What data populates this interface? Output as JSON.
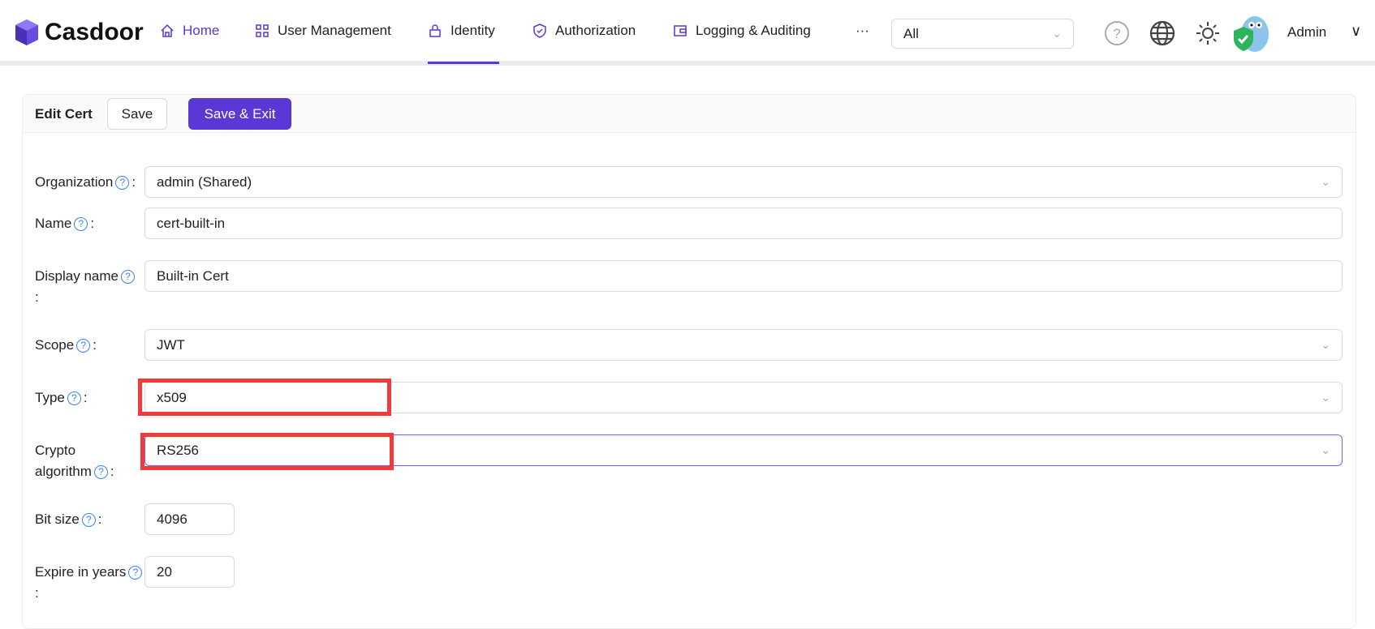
{
  "header": {
    "logo_text": "Casdoor",
    "nav": [
      {
        "label": "Home",
        "icon": "home-icon"
      },
      {
        "label": "User Management",
        "icon": "grid-icon"
      },
      {
        "label": "Identity",
        "icon": "lock-icon",
        "active": true
      },
      {
        "label": "Authorization",
        "icon": "shield-check-icon"
      },
      {
        "label": "Logging & Auditing",
        "icon": "wallet-icon"
      }
    ],
    "more": "···",
    "org_select": "All",
    "user_name": "Admin",
    "accent": "#5b37d6"
  },
  "card": {
    "title": "Edit Cert",
    "save_label": "Save",
    "save_exit_label": "Save & Exit"
  },
  "form": {
    "organization": {
      "label": "Organization",
      "value": "admin (Shared)"
    },
    "name": {
      "label": "Name",
      "value": "cert-built-in"
    },
    "display_name": {
      "label": "Display name",
      "value": "Built-in Cert"
    },
    "scope": {
      "label": "Scope",
      "value": "JWT"
    },
    "type": {
      "label": "Type",
      "value": "x509"
    },
    "crypto_algorithm": {
      "label_1": "Crypto",
      "label_2": "algorithm",
      "value": "RS256"
    },
    "bit_size": {
      "label": "Bit size",
      "value": "4096"
    },
    "expire_in_years": {
      "label": "Expire in years",
      "value": "20"
    }
  }
}
